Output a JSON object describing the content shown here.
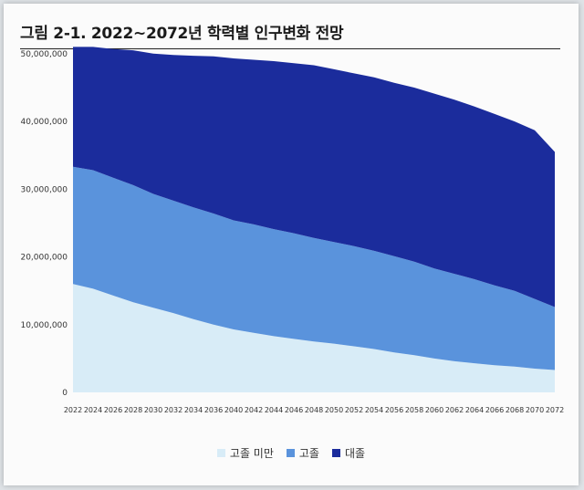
{
  "title": "그림 2-1. 2022~2072년 학력별 인구변화 전망",
  "chart_data": {
    "type": "area",
    "stacked": true,
    "x": [
      "2022",
      "2024",
      "2026",
      "2028",
      "2030",
      "2032",
      "2034",
      "2036",
      "2040",
      "2042",
      "2044",
      "2046",
      "2048",
      "2050",
      "2052",
      "2054",
      "2056",
      "2058",
      "2060",
      "2062",
      "2064",
      "2066",
      "2068",
      "2070",
      "2072"
    ],
    "ylim": [
      0,
      52000000
    ],
    "yticks": [
      0,
      10000000,
      20000000,
      30000000,
      40000000,
      50000000
    ],
    "ytick_labels": [
      "0",
      "10,000,000",
      "20,000,000",
      "30,000,000",
      "40,000,000",
      "50,000,000"
    ],
    "grid": false,
    "legend_position": "bottom-center",
    "series": [
      {
        "name": "고졸 미만",
        "color": "#d8ecf7",
        "values": [
          16000000,
          15300000,
          14300000,
          13300000,
          12500000,
          11700000,
          10800000,
          10000000,
          9300000,
          8800000,
          8300000,
          7900000,
          7500000,
          7200000,
          6800000,
          6400000,
          5900000,
          5500000,
          5000000,
          4600000,
          4300000,
          4000000,
          3800000,
          3500000,
          3300000
        ]
      },
      {
        "name": "고졸",
        "color": "#5a93dc",
        "values": [
          17300000,
          17500000,
          17400000,
          17300000,
          16800000,
          16600000,
          16500000,
          16400000,
          16100000,
          16000000,
          15800000,
          15600000,
          15300000,
          15000000,
          14800000,
          14500000,
          14200000,
          13800000,
          13300000,
          12900000,
          12400000,
          11800000,
          11200000,
          10300000,
          9300000
        ]
      },
      {
        "name": "대졸",
        "color": "#1b2c9c",
        "values": [
          17700000,
          18200000,
          19000000,
          19900000,
          20700000,
          21500000,
          22400000,
          23200000,
          23900000,
          24300000,
          24800000,
          25100000,
          25500000,
          25500000,
          25500000,
          25600000,
          25600000,
          25700000,
          25800000,
          25700000,
          25500000,
          25300000,
          25000000,
          24900000,
          22900000
        ]
      }
    ]
  }
}
